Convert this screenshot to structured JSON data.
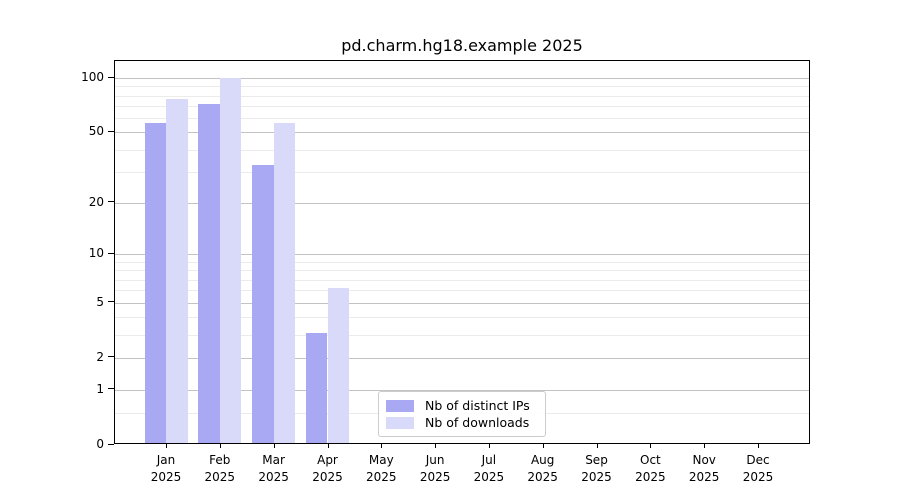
{
  "chart_data": {
    "type": "bar",
    "title": "pd.charm.hg18.example 2025",
    "xlabel": "",
    "ylabel": "",
    "yscale": "log1p",
    "ymax": 123,
    "ylim": [
      0,
      123
    ],
    "grid": true,
    "legend_position": "lower-center-inside",
    "yticks": [
      0,
      1,
      2,
      5,
      10,
      20,
      50,
      100
    ],
    "yminor": [
      0.5,
      3,
      4,
      6,
      7,
      8,
      9,
      30,
      40,
      60,
      70,
      80,
      90
    ],
    "categories": [
      "Jan",
      "Feb",
      "Mar",
      "Apr",
      "May",
      "Jun",
      "Jul",
      "Aug",
      "Sep",
      "Oct",
      "Nov",
      "Dec"
    ],
    "year_label": "2025",
    "series": [
      {
        "name": "Nb of distinct IPs",
        "color": "#a9a9f3",
        "values": [
          55,
          70,
          32,
          3,
          0,
          0,
          0,
          0,
          0,
          0,
          0,
          0
        ]
      },
      {
        "name": "Nb of downloads",
        "color": "#d9d9f9",
        "values": [
          75,
          98,
          55,
          6,
          0,
          0,
          0,
          0,
          0,
          0,
          0,
          0
        ]
      }
    ]
  },
  "colors": {
    "grid_major": "#c3c3c3",
    "grid_minor": "#ebebeb",
    "axis": "#000000",
    "legend_border": "#cccccc",
    "background": "#ffffff"
  }
}
